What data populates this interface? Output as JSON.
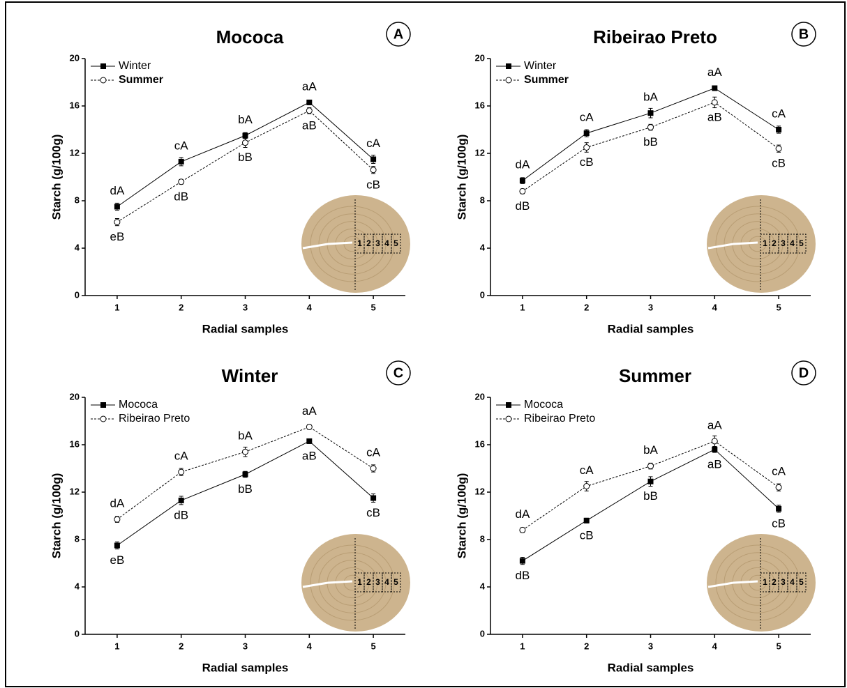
{
  "chart_data": [
    {
      "type": "line",
      "title": "Mococa",
      "panel_label": "A",
      "xlabel": "Radial samples",
      "ylabel": "Starch (g/100g)",
      "x": [
        1,
        2,
        3,
        4,
        5
      ],
      "xlim": [
        0.5,
        5.5
      ],
      "xticks": [
        1,
        2,
        3,
        4,
        5
      ],
      "ylim": [
        0,
        20
      ],
      "yticks": [
        0,
        4,
        8,
        12,
        16,
        20
      ],
      "legend": "upper left",
      "inset_labels": [
        "1",
        "2",
        "3",
        "4",
        "5"
      ],
      "series": [
        {
          "name": "Winter",
          "color": "#000000",
          "marker": "square",
          "linestyle": "solid",
          "label_position": "above",
          "values": [
            7.5,
            11.3,
            13.5,
            16.3,
            11.5
          ],
          "errors": [
            0.3,
            0.35,
            0.25,
            0.2,
            0.35
          ],
          "point_labels": [
            "dA",
            "cA",
            "bA",
            "aA",
            "cA"
          ]
        },
        {
          "name": "Summer",
          "color": "#000000",
          "marker": "circle",
          "linestyle": "dotted",
          "label_position": "below",
          "values": [
            6.2,
            9.6,
            12.9,
            15.6,
            10.6
          ],
          "errors": [
            0.3,
            0.2,
            0.4,
            0.25,
            0.3
          ],
          "point_labels": [
            "eB",
            "dB",
            "bB",
            "aB",
            "cB"
          ]
        }
      ]
    },
    {
      "type": "line",
      "title": "Ribeirao Preto",
      "panel_label": "B",
      "xlabel": "Radial samples",
      "ylabel": "Starch (g/100g)",
      "x": [
        1,
        2,
        3,
        4,
        5
      ],
      "xlim": [
        0.5,
        5.5
      ],
      "xticks": [
        1,
        2,
        3,
        4,
        5
      ],
      "ylim": [
        0,
        20
      ],
      "yticks": [
        0,
        4,
        8,
        12,
        16,
        20
      ],
      "legend": "upper left",
      "inset_labels": [
        "1",
        "2",
        "3",
        "4",
        "5"
      ],
      "series": [
        {
          "name": "Winter",
          "color": "#000000",
          "marker": "square",
          "linestyle": "solid",
          "label_position": "above",
          "values": [
            9.7,
            13.7,
            15.4,
            17.5,
            14.0
          ],
          "errors": [
            0.25,
            0.3,
            0.4,
            0.2,
            0.3
          ],
          "point_labels": [
            "dA",
            "cA",
            "bA",
            "aA",
            "cA"
          ]
        },
        {
          "name": "Summer",
          "color": "#000000",
          "marker": "circle",
          "linestyle": "dotted",
          "label_position": "below",
          "values": [
            8.8,
            12.5,
            14.2,
            16.3,
            12.4
          ],
          "errors": [
            0.2,
            0.4,
            0.25,
            0.45,
            0.3
          ],
          "point_labels": [
            "dB",
            "cB",
            "bB",
            "aB",
            "cB"
          ]
        }
      ]
    },
    {
      "type": "line",
      "title": "Winter",
      "panel_label": "C",
      "xlabel": "Radial samples",
      "ylabel": "Starch (g/100g)",
      "x": [
        1,
        2,
        3,
        4,
        5
      ],
      "xlim": [
        0.5,
        5.5
      ],
      "xticks": [
        1,
        2,
        3,
        4,
        5
      ],
      "ylim": [
        0,
        20
      ],
      "yticks": [
        0,
        4,
        8,
        12,
        16,
        20
      ],
      "legend": "upper left",
      "inset_labels": [
        "1",
        "2",
        "3",
        "4",
        "5"
      ],
      "series": [
        {
          "name": "Mococa",
          "color": "#000000",
          "marker": "square",
          "linestyle": "solid",
          "label_position": "below",
          "values": [
            7.5,
            11.3,
            13.5,
            16.3,
            11.5
          ],
          "errors": [
            0.3,
            0.35,
            0.25,
            0.2,
            0.35
          ],
          "point_labels": [
            "eB",
            "dB",
            "bB",
            "aB",
            "cB"
          ]
        },
        {
          "name": "Ribeirao Preto",
          "color": "#000000",
          "marker": "circle",
          "linestyle": "dotted",
          "label_position": "above",
          "values": [
            9.7,
            13.7,
            15.4,
            17.5,
            14.0
          ],
          "errors": [
            0.25,
            0.3,
            0.4,
            0.2,
            0.3
          ],
          "point_labels": [
            "dA",
            "cA",
            "bA",
            "aA",
            "cA"
          ]
        }
      ]
    },
    {
      "type": "line",
      "title": "Summer",
      "panel_label": "D",
      "xlabel": "Radial samples",
      "ylabel": "Starch (g/100g)",
      "x": [
        1,
        2,
        3,
        4,
        5
      ],
      "xlim": [
        0.5,
        5.5
      ],
      "xticks": [
        1,
        2,
        3,
        4,
        5
      ],
      "ylim": [
        0,
        20
      ],
      "yticks": [
        0,
        4,
        8,
        12,
        16,
        20
      ],
      "legend": "upper left",
      "inset_labels": [
        "1",
        "2",
        "3",
        "4",
        "5"
      ],
      "series": [
        {
          "name": "Mococa",
          "color": "#000000",
          "marker": "square",
          "linestyle": "solid",
          "label_position": "below",
          "values": [
            6.2,
            9.6,
            12.9,
            15.6,
            10.6
          ],
          "errors": [
            0.3,
            0.2,
            0.4,
            0.25,
            0.3
          ],
          "point_labels": [
            "dB",
            "cB",
            "bB",
            "aB",
            "cB"
          ]
        },
        {
          "name": "Ribeirao Preto",
          "color": "#000000",
          "marker": "circle",
          "linestyle": "dotted",
          "label_position": "above",
          "values": [
            8.8,
            12.5,
            14.2,
            16.3,
            12.4
          ],
          "errors": [
            0.2,
            0.4,
            0.25,
            0.45,
            0.3
          ],
          "point_labels": [
            "dA",
            "cA",
            "bA",
            "aA",
            "cA"
          ]
        }
      ]
    }
  ]
}
